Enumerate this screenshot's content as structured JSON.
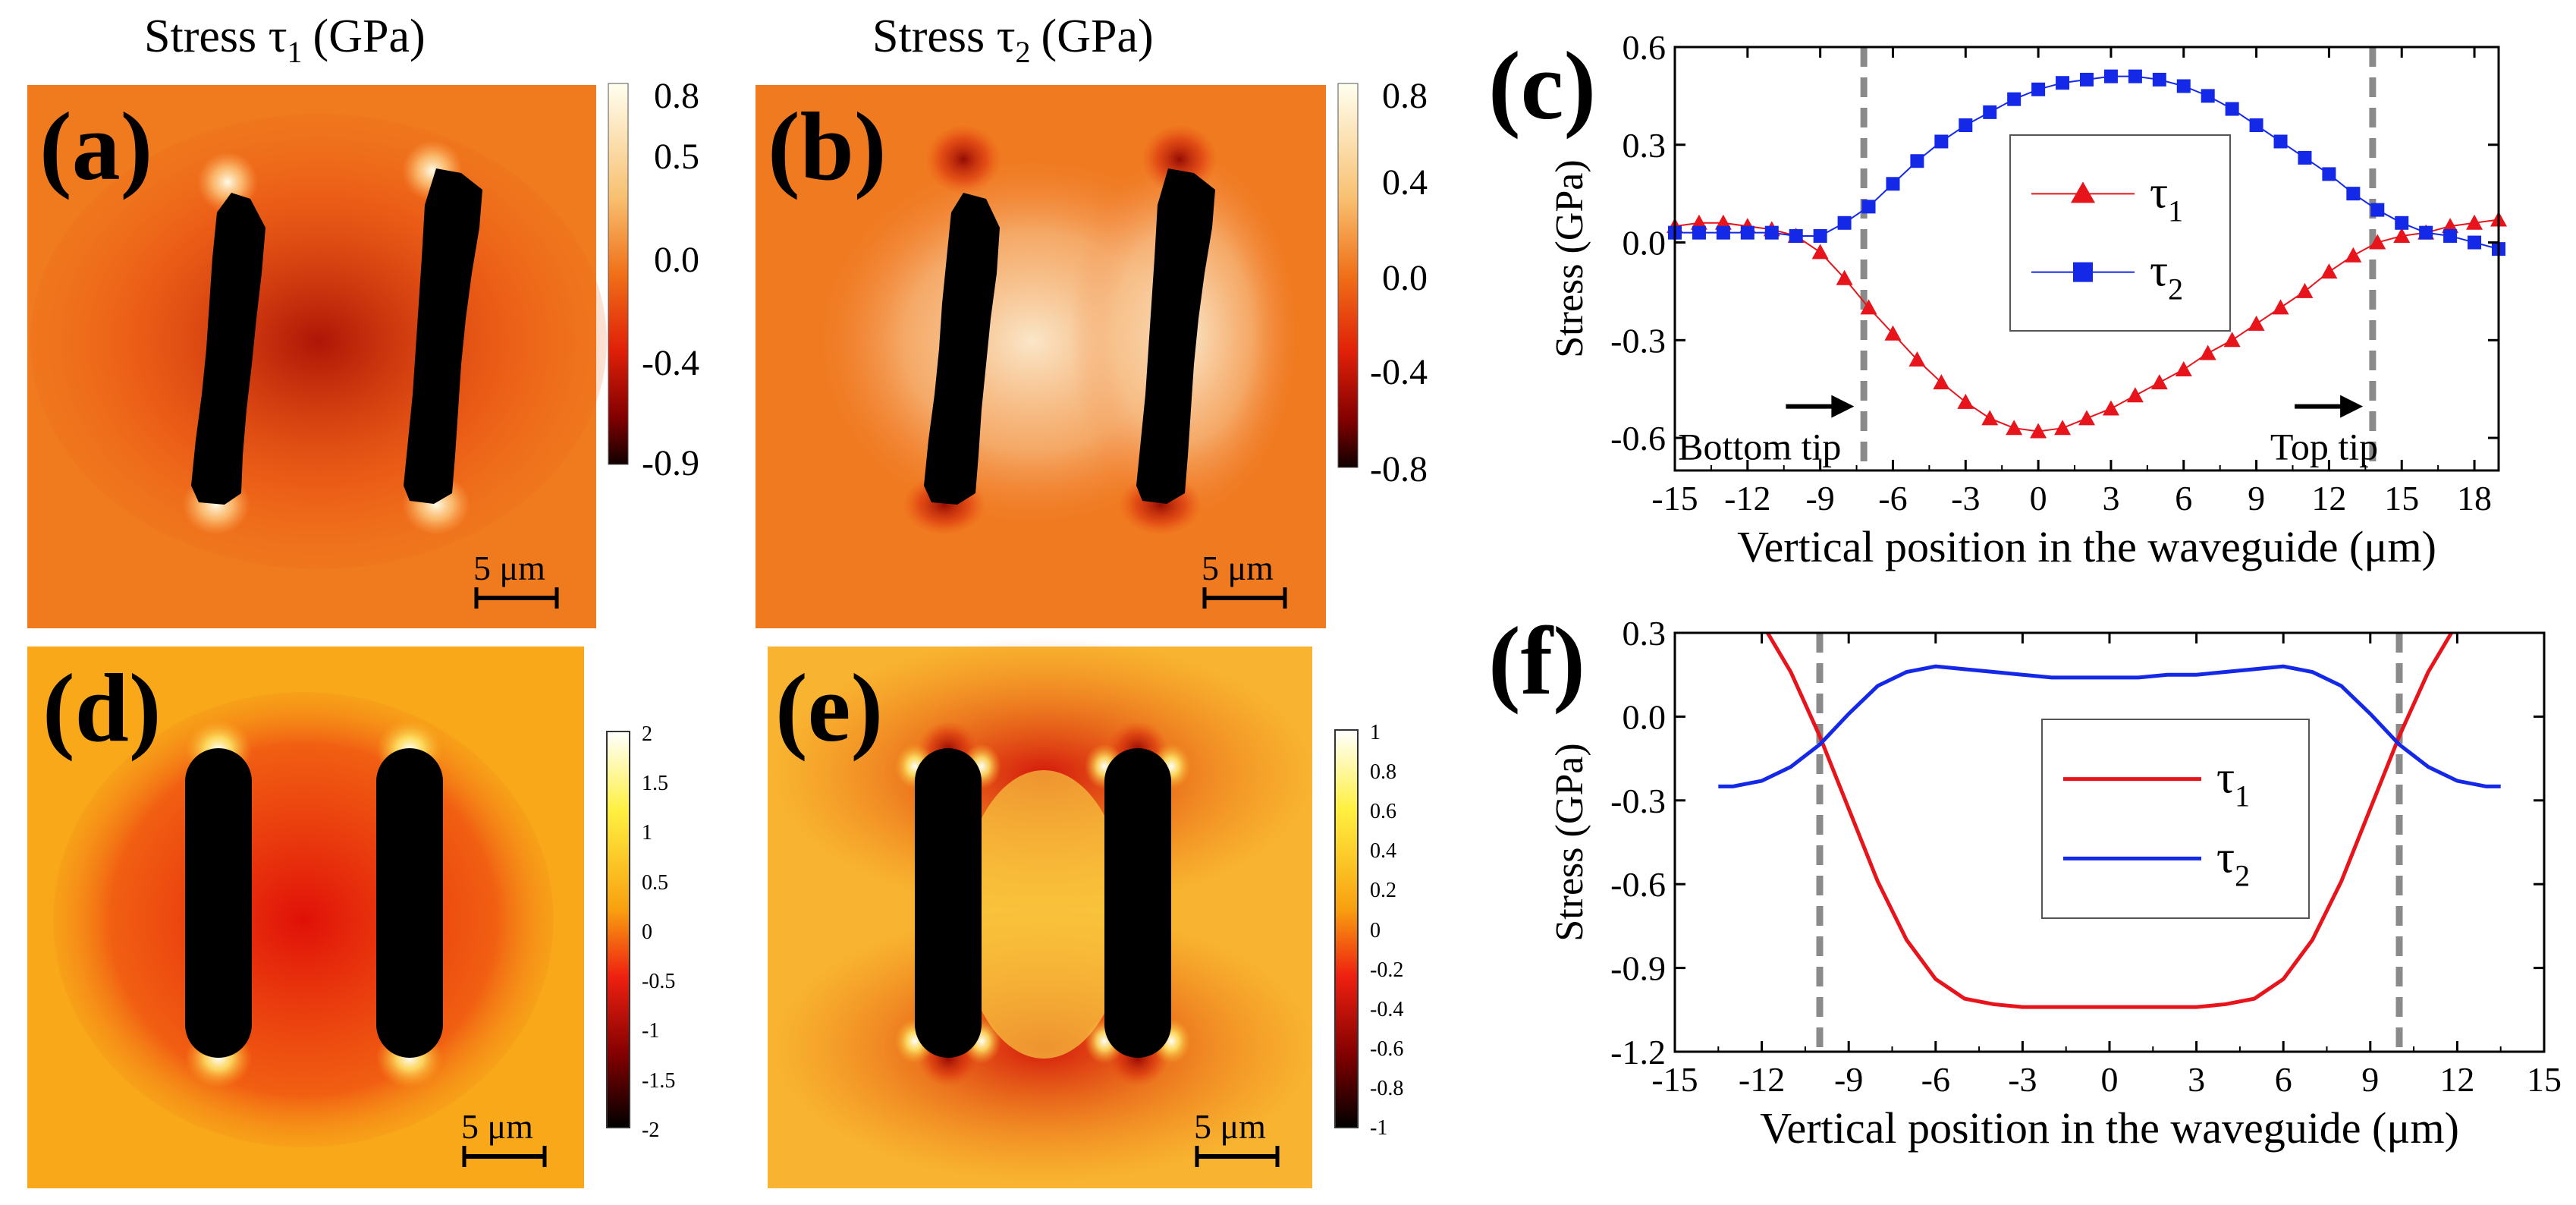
{
  "colors": {
    "tau1": "#e8141c",
    "tau2": "#1428e8",
    "dash": "#8a8a8a",
    "hole": "#000000"
  },
  "titles": {
    "col_a_prefix": "Stress τ",
    "col_a_sub": "1",
    "col_a_unit": "(GPa)",
    "col_b_prefix": "Stress τ",
    "col_b_sub": "2",
    "col_b_unit": "(GPa)"
  },
  "panels": {
    "a": {
      "label": "(a)",
      "scale_text": "5 μm",
      "colorbar_ticks": [
        "0.8",
        "0.5",
        "0.0",
        "-0.4",
        "-0.9"
      ]
    },
    "b": {
      "label": "(b)",
      "scale_text": "5 μm",
      "colorbar_ticks": [
        "0.8",
        "0.4",
        "0.0",
        "-0.4",
        "-0.8"
      ]
    },
    "d": {
      "label": "(d)",
      "scale_text": "5 μm",
      "colorbar_ticks": [
        "2",
        "1.5",
        "1",
        "0.5",
        "0",
        "-0.5",
        "-1",
        "-1.5",
        "-2"
      ]
    },
    "e": {
      "label": "(e)",
      "scale_text": "5 μm",
      "colorbar_ticks": [
        "1",
        "0.8",
        "0.6",
        "0.4",
        "0.2",
        "0",
        "-0.2",
        "-0.4",
        "-0.6",
        "-0.8",
        "-1"
      ]
    }
  },
  "chart_data": [
    {
      "id": "c",
      "label": "(c)",
      "type": "line",
      "xlabel": "Vertical position in the waveguide (μm)",
      "ylabel": "Stress (GPa)",
      "xlim": [
        -15,
        19
      ],
      "ylim": [
        -0.7,
        0.6
      ],
      "xticks": [
        -15,
        -12,
        -9,
        -6,
        -3,
        0,
        3,
        6,
        9,
        12,
        15,
        18
      ],
      "xtick_labels": [
        "-15",
        "-12",
        "-9",
        "-6",
        "-3",
        "0",
        "3",
        "6",
        "9",
        "12",
        "15",
        "18"
      ],
      "yticks": [
        -0.6,
        -0.3,
        0.0,
        0.3,
        0.6
      ],
      "ytick_labels": [
        "-0.6",
        "-0.3",
        "0.0",
        "0.3",
        "0.6"
      ],
      "vlines": [
        -7.2,
        13.8
      ],
      "annotations": [
        {
          "text": "Bottom tip",
          "x": -11.5,
          "y": -0.62,
          "arrow_to_x": -7.6
        },
        {
          "text": "Top tip",
          "x": 11.8,
          "y": -0.62,
          "arrow_to_x": 13.4
        }
      ],
      "legend": {
        "position": "center",
        "entries": [
          {
            "symbol": "τ",
            "sub": "1"
          },
          {
            "symbol": "τ",
            "sub": "2"
          }
        ]
      },
      "series": [
        {
          "name": "τ1",
          "marker": "triangle",
          "x": [
            -15,
            -14,
            -13,
            -12,
            -11,
            -10,
            -9,
            -8,
            -7,
            -6,
            -5,
            -4,
            -3,
            -2,
            -1,
            0,
            1,
            2,
            3,
            4,
            5,
            6,
            7,
            8,
            9,
            10,
            11,
            12,
            13,
            14,
            15,
            16,
            17,
            18,
            19
          ],
          "values": [
            0.05,
            0.06,
            0.06,
            0.05,
            0.04,
            0.02,
            -0.03,
            -0.11,
            -0.2,
            -0.28,
            -0.36,
            -0.43,
            -0.49,
            -0.54,
            -0.57,
            -0.58,
            -0.57,
            -0.54,
            -0.51,
            -0.47,
            -0.43,
            -0.39,
            -0.34,
            -0.3,
            -0.25,
            -0.2,
            -0.15,
            -0.09,
            -0.04,
            0.0,
            0.02,
            0.03,
            0.05,
            0.06,
            0.07
          ]
        },
        {
          "name": "τ2",
          "marker": "square",
          "x": [
            -15,
            -14,
            -13,
            -12,
            -11,
            -10,
            -9,
            -8,
            -7,
            -6,
            -5,
            -4,
            -3,
            -2,
            -1,
            0,
            1,
            2,
            3,
            4,
            5,
            6,
            7,
            8,
            9,
            10,
            11,
            12,
            13,
            14,
            15,
            16,
            17,
            18,
            19
          ],
          "values": [
            0.03,
            0.03,
            0.03,
            0.03,
            0.03,
            0.02,
            0.02,
            0.06,
            0.11,
            0.18,
            0.25,
            0.31,
            0.36,
            0.4,
            0.44,
            0.47,
            0.49,
            0.5,
            0.51,
            0.51,
            0.5,
            0.48,
            0.45,
            0.41,
            0.36,
            0.31,
            0.26,
            0.21,
            0.15,
            0.1,
            0.06,
            0.03,
            0.02,
            0.0,
            -0.02
          ]
        }
      ]
    },
    {
      "id": "f",
      "label": "(f)",
      "type": "line",
      "xlabel": "Vertical position in the waveguide (μm)",
      "ylabel": "Stress (GPa)",
      "xlim": [
        -15,
        15
      ],
      "ylim": [
        -1.2,
        0.3
      ],
      "xticks": [
        -15,
        -12,
        -9,
        -6,
        -3,
        0,
        3,
        6,
        9,
        12,
        15
      ],
      "xtick_labels": [
        "-15",
        "-12",
        "-9",
        "-6",
        "-3",
        "0",
        "3",
        "6",
        "9",
        "12",
        "15"
      ],
      "yticks": [
        -1.2,
        -0.9,
        -0.6,
        -0.3,
        0.0,
        0.3
      ],
      "ytick_labels": [
        "-1.2",
        "-0.9",
        "-0.6",
        "-0.3",
        "0.0",
        "0.3"
      ],
      "vlines": [
        -10,
        10
      ],
      "legend": {
        "position": "center-right",
        "entries": [
          {
            "symbol": "τ",
            "sub": "1"
          },
          {
            "symbol": "τ",
            "sub": "2"
          }
        ]
      },
      "series": [
        {
          "name": "τ1",
          "x": [
            -11.8,
            -11,
            -10,
            -9,
            -8,
            -7,
            -6,
            -5,
            -4,
            -3,
            -2,
            -1,
            0,
            1,
            2,
            3,
            4,
            5,
            6,
            7,
            8,
            9,
            10,
            11,
            11.8
          ],
          "values": [
            0.3,
            0.16,
            -0.07,
            -0.33,
            -0.59,
            -0.8,
            -0.94,
            -1.01,
            -1.03,
            -1.04,
            -1.04,
            -1.04,
            -1.04,
            -1.04,
            -1.04,
            -1.04,
            -1.03,
            -1.01,
            -0.94,
            -0.8,
            -0.59,
            -0.33,
            -0.07,
            0.16,
            0.3
          ]
        },
        {
          "name": "τ2",
          "x": [
            -13.5,
            -13,
            -12,
            -11,
            -10,
            -9,
            -8,
            -7,
            -6,
            -5,
            -4,
            -3,
            -2,
            -1,
            0,
            1,
            2,
            3,
            4,
            5,
            6,
            7,
            8,
            9,
            10,
            11,
            12,
            13,
            13.5
          ],
          "values": [
            -0.25,
            -0.25,
            -0.23,
            -0.18,
            -0.1,
            0.01,
            0.11,
            0.16,
            0.18,
            0.17,
            0.16,
            0.15,
            0.14,
            0.14,
            0.14,
            0.14,
            0.15,
            0.15,
            0.16,
            0.17,
            0.18,
            0.16,
            0.11,
            0.01,
            -0.1,
            -0.18,
            -0.23,
            -0.25,
            -0.25
          ]
        }
      ]
    }
  ]
}
